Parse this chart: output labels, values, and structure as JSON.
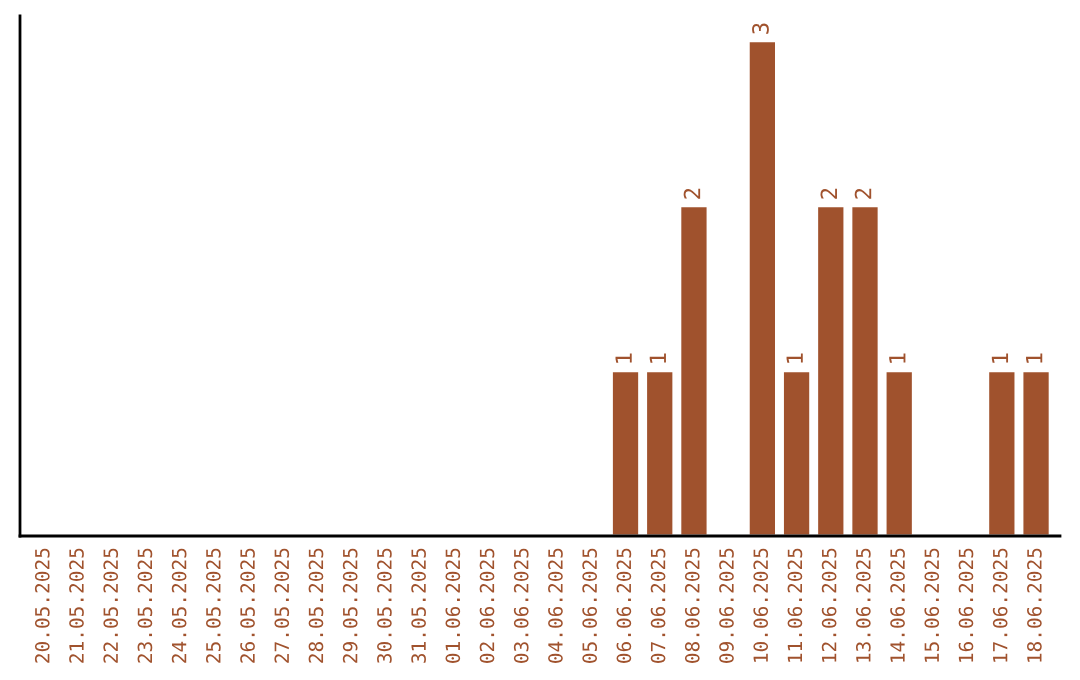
{
  "chart_data": {
    "type": "bar",
    "categories": [
      "20.05.2025",
      "21.05.2025",
      "22.05.2025",
      "23.05.2025",
      "24.05.2025",
      "25.05.2025",
      "26.05.2025",
      "27.05.2025",
      "28.05.2025",
      "29.05.2025",
      "30.05.2025",
      "31.05.2025",
      "01.06.2025",
      "02.06.2025",
      "03.06.2025",
      "04.06.2025",
      "05.06.2025",
      "06.06.2025",
      "07.06.2025",
      "08.06.2025",
      "09.06.2025",
      "10.06.2025",
      "11.06.2025",
      "12.06.2025",
      "13.06.2025",
      "14.06.2025",
      "15.06.2025",
      "16.06.2025",
      "17.06.2025",
      "18.06.2025"
    ],
    "values": [
      null,
      null,
      null,
      null,
      null,
      null,
      null,
      null,
      null,
      null,
      null,
      null,
      null,
      null,
      null,
      null,
      null,
      1,
      1,
      2,
      null,
      3,
      1,
      2,
      2,
      1,
      null,
      null,
      1,
      1
    ],
    "data_labels": true,
    "color": "#a0522d",
    "grid": false,
    "legend": false
  }
}
